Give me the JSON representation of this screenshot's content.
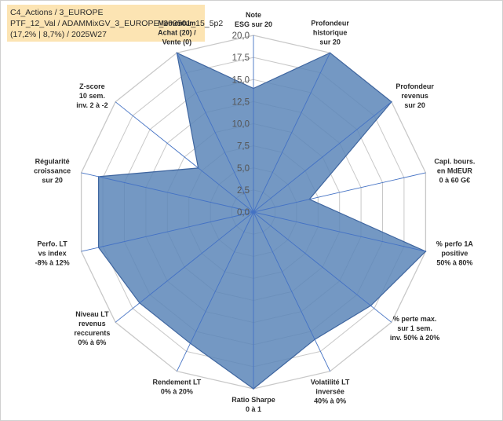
{
  "info_box": {
    "line1": "C4_Actions / 3_EUROPE",
    "line2": "PTF_12_Val / ADAMMixGV_3_EUROPE_202501_15_5p2",
    "line3": "(17,2% | 8,7%) / 2025W27"
  },
  "chart_data": {
    "type": "radar",
    "title": "",
    "rlim": [
      0,
      20
    ],
    "r_ticks": [
      "0,0",
      "2,5",
      "5,0",
      "7,5",
      "10,0",
      "12,5",
      "15,0",
      "17,5",
      "20,0"
    ],
    "grid": true,
    "legend": "none",
    "colors": {
      "fill": "#5c86b8",
      "stroke": "#3f66a0",
      "grid": "#c8c8c8",
      "spoke": "#4472c4"
    },
    "axes": [
      {
        "label_lines": [
          "Note",
          "ESG sur 20"
        ]
      },
      {
        "label_lines": [
          "Profondeur",
          "historique",
          "sur 20"
        ]
      },
      {
        "label_lines": [
          "Profondeur",
          "revenus",
          "sur 20"
        ]
      },
      {
        "label_lines": [
          "Capi. bours.",
          "en MdEUR",
          "0 à 60 G€"
        ]
      },
      {
        "label_lines": [
          "% perfo 1A",
          "positive",
          "50% à 80%"
        ]
      },
      {
        "label_lines": [
          "% perte max.",
          "sur 1 sem.",
          "inv. 50% à 20%"
        ]
      },
      {
        "label_lines": [
          "Volatilité LT",
          "inversée",
          "40% à 0%"
        ]
      },
      {
        "label_lines": [
          "Ratio Sharpe",
          "0 à 1"
        ]
      },
      {
        "label_lines": [
          "Rendement LT",
          "0% à 20%"
        ]
      },
      {
        "label_lines": [
          "Niveau LT",
          "revenus",
          "reccurents",
          "0% à 6%"
        ]
      },
      {
        "label_lines": [
          "Perfo. LT",
          "vs index",
          "-8% à 12%"
        ]
      },
      {
        "label_lines": [
          "Régularité",
          "croissance",
          "sur 20"
        ]
      },
      {
        "label_lines": [
          "Z-score",
          "10 sem.",
          "inv. 2 à -2"
        ]
      },
      {
        "label_lines": [
          "Momentum",
          "Achat (20) /",
          "Vente (0)"
        ]
      }
    ],
    "series": [
      {
        "values": [
          14.0,
          20.0,
          20.0,
          6.5,
          20.0,
          17.0,
          16.0,
          20.0,
          16.5,
          16.5,
          18.0,
          18.0,
          8.0,
          20.0
        ]
      }
    ]
  }
}
